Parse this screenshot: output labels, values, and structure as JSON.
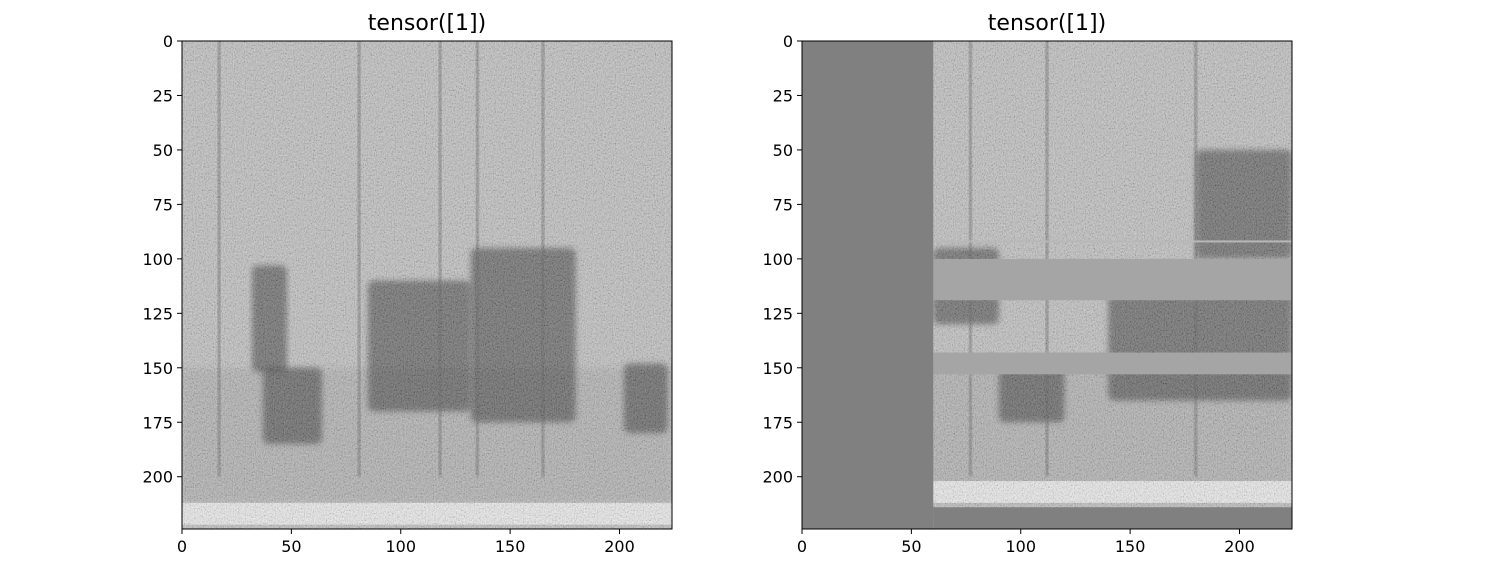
{
  "chart_data": [
    {
      "type": "heatmap",
      "title": "tensor([1])",
      "xlim": [
        0,
        224
      ],
      "ylim": [
        224,
        0
      ],
      "xticks": [
        0,
        50,
        100,
        150,
        200
      ],
      "yticks": [
        0,
        25,
        50,
        75,
        100,
        125,
        150,
        175,
        200
      ],
      "colormap": "gray",
      "content": "mel spectrogram, unmasked",
      "vertical_streaks_x": [
        17,
        81,
        118,
        135,
        165
      ],
      "dark_blobs": [
        {
          "x": [
            32,
            48
          ],
          "y": [
            103,
            152
          ]
        },
        {
          "x": [
            37,
            64
          ],
          "y": [
            150,
            185
          ]
        },
        {
          "x": [
            85,
            132
          ],
          "y": [
            110,
            170
          ]
        },
        {
          "x": [
            132,
            180
          ],
          "y": [
            95,
            175
          ]
        },
        {
          "x": [
            202,
            222
          ],
          "y": [
            148,
            180
          ]
        }
      ],
      "bright_band_y": [
        212,
        222
      ]
    },
    {
      "type": "heatmap",
      "title": "tensor([1])",
      "xlim": [
        0,
        224
      ],
      "ylim": [
        224,
        0
      ],
      "xticks": [
        0,
        50,
        100,
        150,
        200
      ],
      "yticks": [
        0,
        25,
        50,
        75,
        100,
        125,
        150,
        175,
        200
      ],
      "colormap": "gray",
      "content": "augmented spectrogram (time shift + frequency masks)",
      "time_shift_fill": {
        "x": [
          0,
          60
        ],
        "y": [
          0,
          224
        ],
        "color": "#808080"
      },
      "bottom_fill": {
        "x": [
          60,
          224
        ],
        "y": [
          214,
          224
        ],
        "color": "#808080"
      },
      "freq_masks": [
        {
          "y": [
            100,
            119
          ],
          "color": "#a5a5a5"
        },
        {
          "y": [
            143,
            153
          ],
          "color": "#a5a5a5"
        }
      ],
      "thin_line_y": 92,
      "vertical_streaks_x": [
        77,
        112,
        180
      ],
      "dark_blobs": [
        {
          "x": [
            60,
            90
          ],
          "y": [
            95,
            130
          ]
        },
        {
          "x": [
            90,
            120
          ],
          "y": [
            150,
            175
          ]
        },
        {
          "x": [
            140,
            224
          ],
          "y": [
            110,
            165
          ]
        },
        {
          "x": [
            180,
            224
          ],
          "y": [
            50,
            100
          ]
        }
      ],
      "bright_band_y": [
        202,
        212
      ]
    }
  ]
}
